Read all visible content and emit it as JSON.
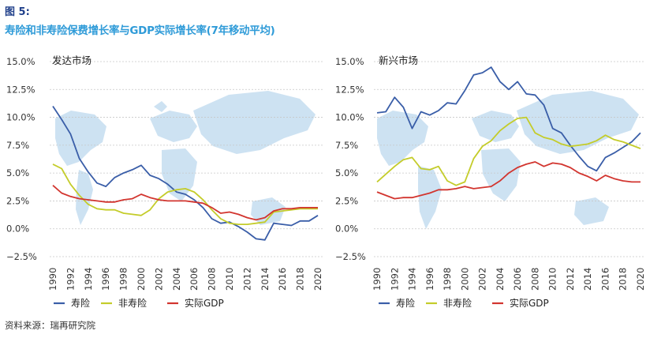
{
  "figure": {
    "label": "图 5:",
    "title": "寿险和非寿险保费增长率与GDP实际增长率(7年移动平均)",
    "source": "资料来源：瑞再研究院"
  },
  "colors": {
    "life": "#3a5ea8",
    "nonlife": "#c4cc2a",
    "gdp": "#d2352f",
    "grid": "#c8c8c8",
    "map": "#bcd8ee"
  },
  "chart_data": [
    {
      "type": "line",
      "title": "发达市场",
      "x": [
        1990,
        1991,
        1992,
        1993,
        1994,
        1995,
        1996,
        1997,
        1998,
        1999,
        2000,
        2001,
        2002,
        2003,
        2004,
        2005,
        2006,
        2007,
        2008,
        2009,
        2010,
        2011,
        2012,
        2013,
        2014,
        2015,
        2016,
        2017,
        2018,
        2019,
        2020
      ],
      "x_ticks": [
        "1990",
        "1992",
        "1994",
        "1996",
        "1998",
        "2000",
        "2002",
        "2004",
        "2006",
        "2008",
        "2010",
        "2012",
        "2014",
        "2016",
        "2018",
        "2020"
      ],
      "y_ticks": [
        "15.0%",
        "12.5%",
        "10.0%",
        "7.5%",
        "5.0%",
        "2.5%",
        "0.0%",
        "−2.5%"
      ],
      "ylim": [
        -2.5,
        15.0
      ],
      "grid": "horizontal",
      "legend_position": "bottom",
      "series": [
        {
          "name": "寿险",
          "values": [
            11.0,
            9.8,
            8.5,
            6.3,
            5.1,
            4.1,
            3.8,
            4.6,
            5.0,
            5.3,
            5.7,
            4.8,
            4.5,
            4.0,
            3.3,
            3.1,
            2.6,
            1.9,
            0.9,
            0.5,
            0.6,
            0.2,
            -0.3,
            -0.9,
            -1.0,
            0.5,
            0.4,
            0.3,
            0.7,
            0.7,
            1.2
          ]
        },
        {
          "name": "非寿险",
          "values": [
            5.8,
            5.4,
            4.0,
            3.0,
            2.2,
            1.8,
            1.7,
            1.7,
            1.4,
            1.3,
            1.2,
            1.7,
            2.7,
            3.3,
            3.5,
            3.6,
            3.3,
            2.6,
            1.7,
            0.9,
            0.5,
            0.4,
            0.4,
            0.5,
            0.6,
            1.5,
            1.6,
            1.7,
            1.8,
            1.8,
            1.8
          ]
        },
        {
          "name": "实际GDP",
          "values": [
            3.9,
            3.2,
            2.9,
            2.7,
            2.6,
            2.5,
            2.4,
            2.4,
            2.6,
            2.7,
            3.1,
            2.8,
            2.6,
            2.5,
            2.5,
            2.5,
            2.4,
            2.3,
            1.9,
            1.4,
            1.5,
            1.3,
            1.0,
            0.8,
            1.0,
            1.6,
            1.8,
            1.8,
            1.9,
            1.9,
            1.9
          ]
        }
      ]
    },
    {
      "type": "line",
      "title": "新兴市场",
      "x": [
        1990,
        1991,
        1992,
        1993,
        1994,
        1995,
        1996,
        1997,
        1998,
        1999,
        2000,
        2001,
        2002,
        2003,
        2004,
        2005,
        2006,
        2007,
        2008,
        2009,
        2010,
        2011,
        2012,
        2013,
        2014,
        2015,
        2016,
        2017,
        2018,
        2019,
        2020
      ],
      "x_ticks": [
        "1990",
        "1992",
        "1994",
        "1996",
        "1998",
        "2000",
        "2002",
        "2004",
        "2006",
        "2008",
        "2010",
        "2012",
        "2014",
        "2016",
        "2018",
        "2020"
      ],
      "y_ticks": [
        "15.0%",
        "12.5%",
        "10.0%",
        "7.5%",
        "5.0%",
        "2.5%",
        "0.0%",
        "−2.5%"
      ],
      "ylim": [
        -2.5,
        15.0
      ],
      "grid": "horizontal",
      "legend_position": "bottom",
      "series": [
        {
          "name": "寿险",
          "values": [
            10.4,
            10.5,
            11.8,
            10.9,
            9.0,
            10.5,
            10.2,
            10.6,
            11.3,
            11.2,
            12.4,
            13.8,
            14.0,
            14.5,
            13.2,
            12.5,
            13.2,
            12.1,
            12.0,
            11.1,
            9.0,
            8.6,
            7.5,
            6.5,
            5.6,
            5.2,
            6.4,
            6.8,
            7.3,
            7.8,
            8.6
          ]
        },
        {
          "name": "非寿险",
          "values": [
            4.2,
            4.9,
            5.6,
            6.2,
            6.4,
            5.4,
            5.3,
            5.6,
            4.3,
            3.9,
            4.2,
            6.3,
            7.4,
            7.9,
            8.8,
            9.4,
            9.9,
            10.0,
            8.6,
            8.2,
            8.0,
            7.6,
            7.4,
            7.5,
            7.6,
            7.9,
            8.4,
            8.0,
            7.8,
            7.5,
            7.2
          ]
        },
        {
          "name": "实际GDP",
          "values": [
            3.3,
            3.0,
            2.7,
            2.8,
            2.8,
            3.0,
            3.2,
            3.5,
            3.5,
            3.6,
            3.8,
            3.6,
            3.7,
            3.8,
            4.3,
            5.0,
            5.5,
            5.8,
            6.0,
            5.6,
            5.9,
            5.8,
            5.5,
            5.0,
            4.7,
            4.3,
            4.8,
            4.5,
            4.3,
            4.2,
            4.2
          ]
        }
      ]
    }
  ]
}
